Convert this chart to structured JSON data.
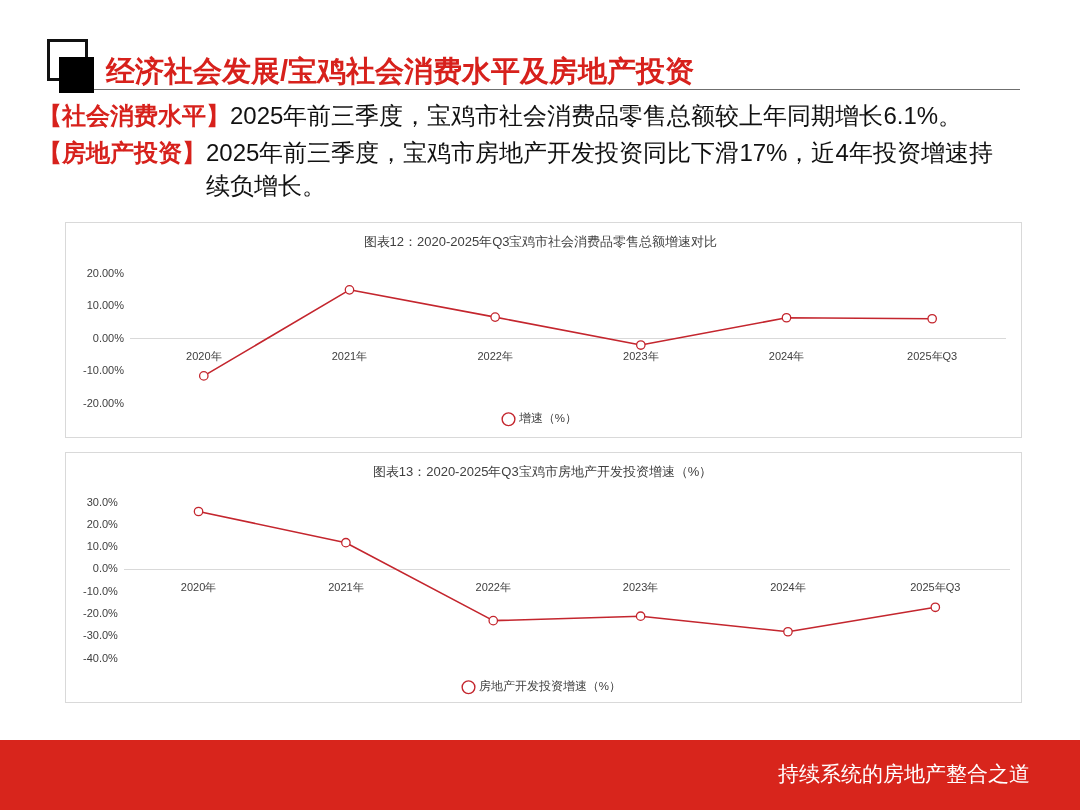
{
  "chart_data": [
    {
      "type": "line",
      "title": "图表12：2020-2025年Q3宝鸡市社会消费品零售总额增速对比",
      "categories": [
        "2020年",
        "2021年",
        "2022年",
        "2023年",
        "2024年",
        "2025年Q3"
      ],
      "series": [
        {
          "name": "增速（%）",
          "color": "#c4262e",
          "values": [
            -11.5,
            15,
            6.6,
            -2,
            6.4,
            6.1
          ]
        }
      ],
      "ylim": [
        -20,
        20
      ],
      "yticks": [
        {
          "value": -20,
          "label": "-20.00%"
        },
        {
          "value": -10,
          "label": "-10.00%"
        },
        {
          "value": 0,
          "label": "0.00%"
        },
        {
          "value": 10,
          "label": "10.00%"
        },
        {
          "value": 20,
          "label": "20.00%"
        }
      ],
      "legend": "bottom",
      "marker": "circle",
      "line_style": "solid",
      "annotations": [
        "经济社会发展/宝鸡社会消费水平及房地产投资",
        "【社会消费水平】",
        "2025年前三季度，宝鸡市社会消费品零售总额较上年同期增长6.1%。",
        "【房地产投资】",
        "2025年前三季度，宝鸡市房地产开发投资同比下滑17%，近4年投资增速持续负增长。"
      ]
    },
    {
      "type": "line",
      "title": "图表13：2020-2025年Q3宝鸡市房地产开发投资增速（%）",
      "categories": [
        "2020年",
        "2021年",
        "2022年",
        "2023年",
        "2024年",
        "2025年Q3"
      ],
      "series": [
        {
          "name": "房地产开发投资增速（%）",
          "color": "#c4262e",
          "values": [
            26,
            12,
            -23,
            -21,
            -28,
            -17
          ]
        }
      ],
      "ylim": [
        -40,
        30
      ],
      "yticks": [
        {
          "value": -40,
          "label": "-40.0%"
        },
        {
          "value": -30,
          "label": "-30.0%"
        },
        {
          "value": -20,
          "label": "-20.0%"
        },
        {
          "value": -10,
          "label": "-10.0%"
        },
        {
          "value": 0,
          "label": "0.0%"
        },
        {
          "value": 10,
          "label": "10.0%"
        },
        {
          "value": 20,
          "label": "20.0%"
        },
        {
          "value": 30,
          "label": "30.0%"
        }
      ],
      "legend": "bottom",
      "marker": "circle",
      "line_style": "solid",
      "annotations": [
        "持续系统的房地产整合之道"
      ]
    }
  ]
}
